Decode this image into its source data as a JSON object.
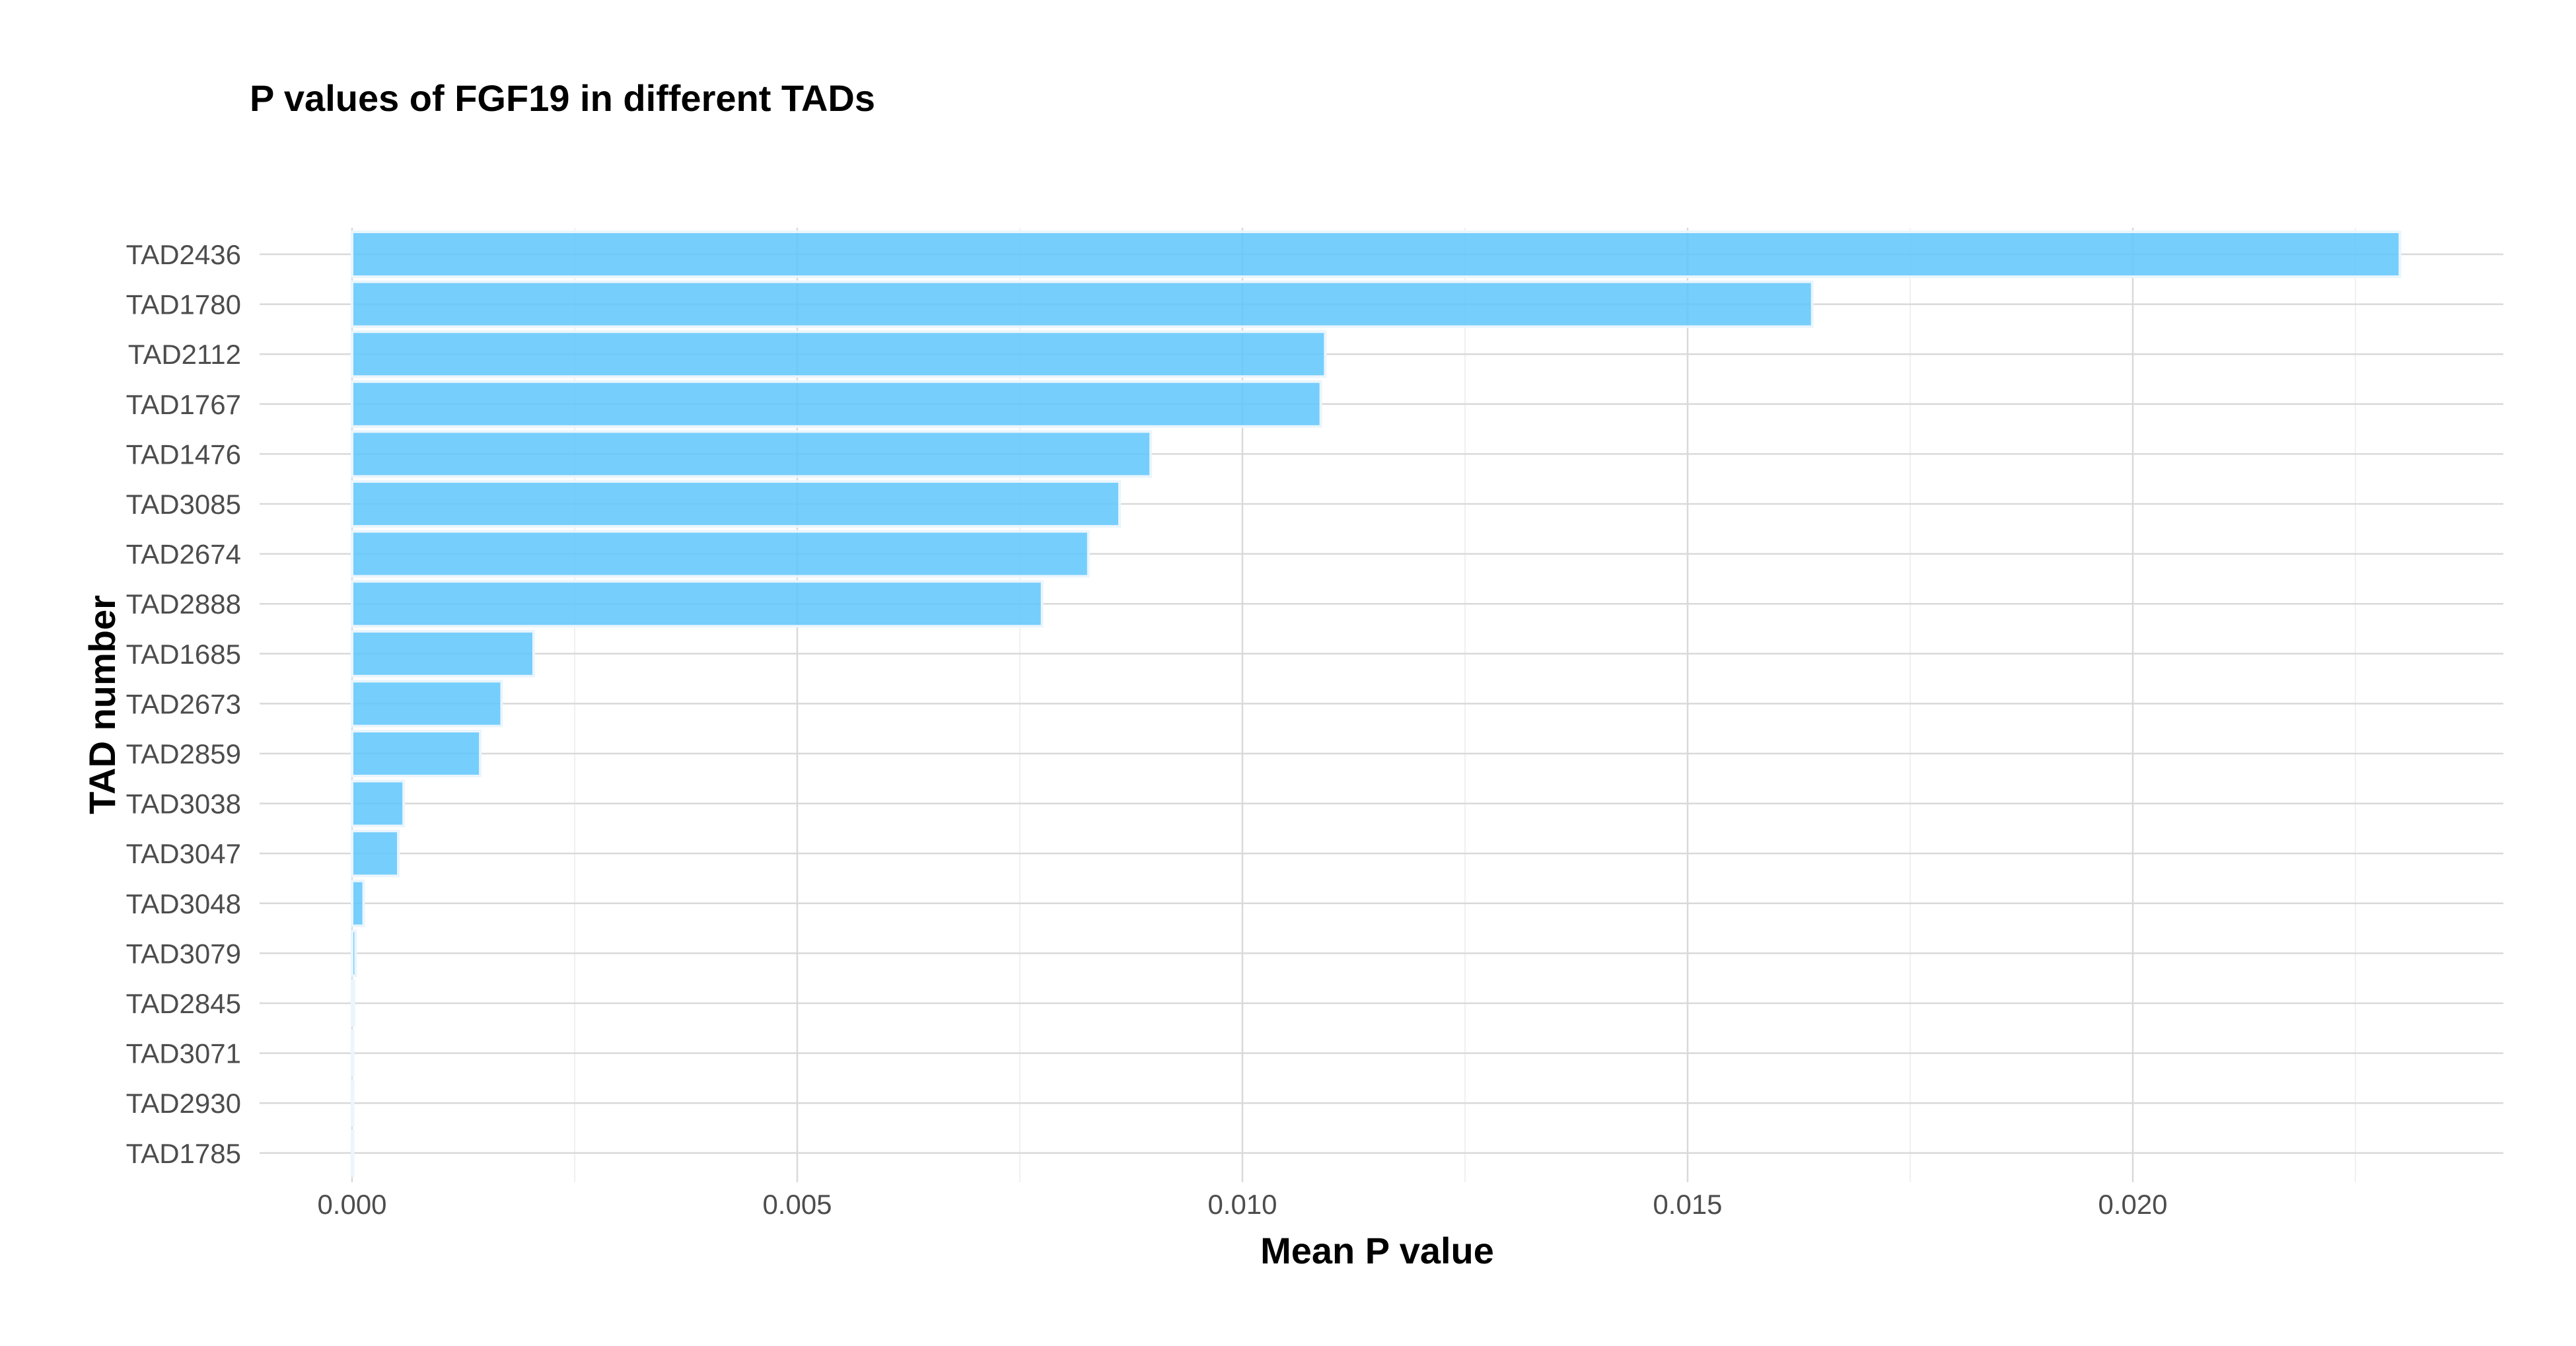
{
  "chart_data": {
    "type": "bar",
    "orientation": "horizontal",
    "title": "P values of FGF19 in different TADs",
    "xlabel": "Mean P value",
    "ylabel": "TAD number",
    "categories": [
      "TAD2436",
      "TAD1780",
      "TAD2112",
      "TAD1767",
      "TAD1476",
      "TAD3085",
      "TAD2674",
      "TAD2888",
      "TAD1685",
      "TAD2673",
      "TAD2859",
      "TAD3038",
      "TAD3047",
      "TAD3048",
      "TAD3079",
      "TAD2845",
      "TAD3071",
      "TAD2930",
      "TAD1785"
    ],
    "values": [
      0.023,
      0.0164,
      0.01093,
      0.01088,
      0.00897,
      0.00862,
      0.00827,
      0.00775,
      0.00204,
      0.00168,
      0.00144,
      0.00058,
      0.00052,
      0.00013,
      4e-05,
      2e-05,
      1e-05,
      5e-06,
      3e-06
    ],
    "xlim": [
      -0.001,
      0.02415
    ],
    "x_ticks": [
      0.0,
      0.005,
      0.01,
      0.015,
      0.02
    ],
    "x_tick_labels": [
      "0.000",
      "0.005",
      "0.010",
      "0.015",
      "0.020"
    ],
    "grid": true,
    "legend": "none",
    "bar_color": "#5ec5fb"
  }
}
